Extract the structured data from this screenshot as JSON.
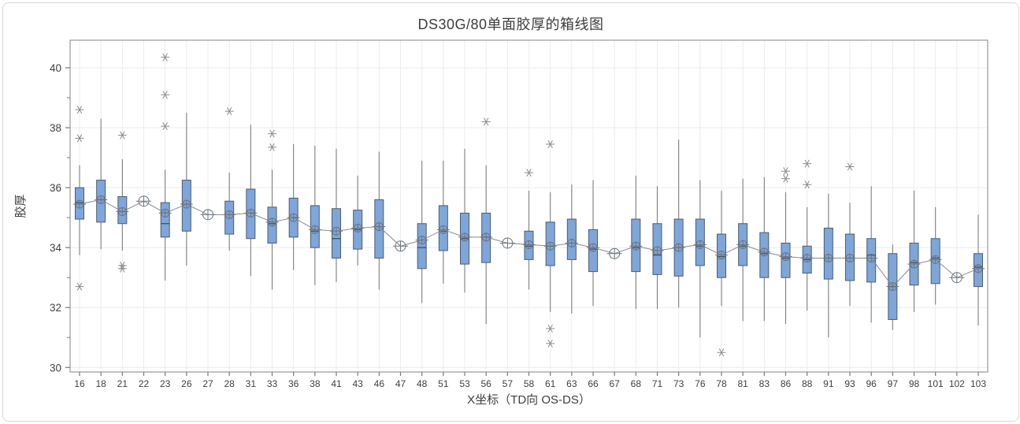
{
  "chart_data": {
    "type": "boxplot",
    "title": "DS30G/80单面胶厚的箱线图",
    "xlabel": "X坐标（TD向 OS-DS）",
    "ylabel": "胶厚",
    "y_ticks": [
      30,
      32,
      34,
      36,
      38,
      40
    ],
    "y_minor_ticks": [
      31,
      33,
      35,
      37,
      39
    ],
    "ylim": [
      29.85,
      40.92
    ],
    "grid": true,
    "legend": "none",
    "mean_line": true,
    "colors": {
      "box_fill": "#7ea6d8",
      "box_stroke": "#4a5d73",
      "median": "#3a4a5a",
      "whisker": "#7f7f7f",
      "mean_line": "#8a8a8a",
      "mean_marker": "#6a7480",
      "outlier": "#8a8a8a",
      "grid": "#ececec",
      "axis": "#9a9a9a",
      "tick": "#7a7a7a",
      "text": "#3f3f3f",
      "title_text": "#3d3d3d"
    },
    "categories": [
      "16",
      "18",
      "21",
      "22",
      "23",
      "26",
      "27",
      "28",
      "31",
      "33",
      "36",
      "38",
      "41",
      "43",
      "46",
      "47",
      "48",
      "51",
      "53",
      "56",
      "57",
      "58",
      "61",
      "63",
      "66",
      "67",
      "68",
      "71",
      "73",
      "76",
      "78",
      "81",
      "83",
      "86",
      "88",
      "91",
      "93",
      "96",
      "97",
      "98",
      "101",
      "102",
      "103"
    ],
    "boxes": [
      {
        "cat": "16",
        "lo": 33.75,
        "q1": 34.95,
        "med": 35.5,
        "q3": 36.0,
        "hi": 36.75,
        "mean": 35.45,
        "outliers": [
          38.6,
          37.65,
          32.7
        ]
      },
      {
        "cat": "18",
        "lo": 33.95,
        "q1": 34.85,
        "med": 35.6,
        "q3": 36.25,
        "hi": 38.3,
        "mean": 35.6,
        "outliers": []
      },
      {
        "cat": "21",
        "lo": 33.9,
        "q1": 34.8,
        "med": 35.2,
        "q3": 35.7,
        "hi": 36.95,
        "mean": 35.2,
        "outliers": [
          37.75,
          33.4,
          33.3
        ]
      },
      {
        "cat": "22",
        "lo": null,
        "q1": null,
        "med": null,
        "q3": null,
        "hi": null,
        "mean": 35.55,
        "outliers": []
      },
      {
        "cat": "23",
        "lo": 32.9,
        "q1": 34.35,
        "med": 34.8,
        "q3": 35.5,
        "hi": 36.6,
        "mean": 35.15,
        "outliers": [
          40.35,
          39.1,
          38.05
        ]
      },
      {
        "cat": "26",
        "lo": 33.4,
        "q1": 34.55,
        "med": 35.45,
        "q3": 36.25,
        "hi": 38.5,
        "mean": 35.45,
        "outliers": []
      },
      {
        "cat": "27",
        "lo": null,
        "q1": null,
        "med": null,
        "q3": null,
        "hi": null,
        "mean": 35.1,
        "outliers": []
      },
      {
        "cat": "28",
        "lo": 33.9,
        "q1": 34.45,
        "med": 35.1,
        "q3": 35.55,
        "hi": 36.5,
        "mean": 35.1,
        "outliers": [
          38.55
        ]
      },
      {
        "cat": "31",
        "lo": 33.05,
        "q1": 34.3,
        "med": 35.15,
        "q3": 35.95,
        "hi": 38.1,
        "mean": 35.15,
        "outliers": []
      },
      {
        "cat": "33",
        "lo": 32.6,
        "q1": 34.15,
        "med": 34.8,
        "q3": 35.35,
        "hi": 36.6,
        "mean": 34.85,
        "outliers": [
          37.8,
          37.35
        ]
      },
      {
        "cat": "36",
        "lo": 33.25,
        "q1": 34.35,
        "med": 35.0,
        "q3": 35.65,
        "hi": 37.45,
        "mean": 35.0,
        "outliers": []
      },
      {
        "cat": "38",
        "lo": 32.75,
        "q1": 34.0,
        "med": 34.55,
        "q3": 35.4,
        "hi": 37.4,
        "mean": 34.6,
        "outliers": []
      },
      {
        "cat": "41",
        "lo": 32.85,
        "q1": 33.65,
        "med": 34.3,
        "q3": 35.3,
        "hi": 37.3,
        "mean": 34.55,
        "outliers": []
      },
      {
        "cat": "43",
        "lo": 33.4,
        "q1": 33.95,
        "med": 34.6,
        "q3": 35.25,
        "hi": 36.4,
        "mean": 34.65,
        "outliers": []
      },
      {
        "cat": "46",
        "lo": 32.6,
        "q1": 33.65,
        "med": 34.7,
        "q3": 35.6,
        "hi": 37.2,
        "mean": 34.7,
        "outliers": []
      },
      {
        "cat": "47",
        "lo": null,
        "q1": null,
        "med": null,
        "q3": null,
        "hi": null,
        "mean": 34.05,
        "outliers": []
      },
      {
        "cat": "48",
        "lo": 32.15,
        "q1": 33.3,
        "med": 34.0,
        "q3": 34.8,
        "hi": 36.9,
        "mean": 34.25,
        "outliers": []
      },
      {
        "cat": "51",
        "lo": 32.8,
        "q1": 33.9,
        "med": 34.55,
        "q3": 35.4,
        "hi": 36.9,
        "mean": 34.6,
        "outliers": []
      },
      {
        "cat": "53",
        "lo": 32.5,
        "q1": 33.45,
        "med": 34.3,
        "q3": 35.15,
        "hi": 37.3,
        "mean": 34.35,
        "outliers": []
      },
      {
        "cat": "56",
        "lo": 31.45,
        "q1": 33.5,
        "med": 34.35,
        "q3": 35.15,
        "hi": 36.75,
        "mean": 34.35,
        "outliers": [
          38.2
        ]
      },
      {
        "cat": "57",
        "lo": null,
        "q1": null,
        "med": null,
        "q3": null,
        "hi": null,
        "mean": 34.15,
        "outliers": []
      },
      {
        "cat": "58",
        "lo": 32.6,
        "q1": 33.6,
        "med": 34.05,
        "q3": 34.55,
        "hi": 35.9,
        "mean": 34.1,
        "outliers": [
          36.5
        ]
      },
      {
        "cat": "61",
        "lo": 31.85,
        "q1": 33.4,
        "med": 34.05,
        "q3": 34.85,
        "hi": 35.85,
        "mean": 34.05,
        "outliers": [
          37.45,
          31.3,
          30.8
        ]
      },
      {
        "cat": "63",
        "lo": 31.8,
        "q1": 33.6,
        "med": 34.15,
        "q3": 34.95,
        "hi": 36.1,
        "mean": 34.15,
        "outliers": []
      },
      {
        "cat": "66",
        "lo": 32.05,
        "q1": 33.2,
        "med": 33.95,
        "q3": 34.6,
        "hi": 36.25,
        "mean": 34.0,
        "outliers": []
      },
      {
        "cat": "67",
        "lo": null,
        "q1": null,
        "med": null,
        "q3": null,
        "hi": null,
        "mean": 33.8,
        "outliers": []
      },
      {
        "cat": "68",
        "lo": 31.95,
        "q1": 33.2,
        "med": 34.0,
        "q3": 34.95,
        "hi": 36.4,
        "mean": 34.05,
        "outliers": []
      },
      {
        "cat": "71",
        "lo": 31.95,
        "q1": 33.1,
        "med": 33.75,
        "q3": 34.8,
        "hi": 36.05,
        "mean": 33.9,
        "outliers": []
      },
      {
        "cat": "73",
        "lo": 32.0,
        "q1": 33.05,
        "med": 34.0,
        "q3": 34.95,
        "hi": 37.6,
        "mean": 34.0,
        "outliers": []
      },
      {
        "cat": "76",
        "lo": 31.0,
        "q1": 33.4,
        "med": 34.05,
        "q3": 34.95,
        "hi": 36.25,
        "mean": 34.1,
        "outliers": []
      },
      {
        "cat": "78",
        "lo": 32.05,
        "q1": 33.0,
        "med": 33.7,
        "q3": 34.45,
        "hi": 35.9,
        "mean": 33.75,
        "outliers": [
          30.5
        ]
      },
      {
        "cat": "81",
        "lo": 31.55,
        "q1": 33.4,
        "med": 34.05,
        "q3": 34.8,
        "hi": 36.3,
        "mean": 34.1,
        "outliers": []
      },
      {
        "cat": "83",
        "lo": 31.55,
        "q1": 33.0,
        "med": 33.8,
        "q3": 34.5,
        "hi": 36.35,
        "mean": 33.85,
        "outliers": []
      },
      {
        "cat": "86",
        "lo": 31.45,
        "q1": 33.0,
        "med": 33.65,
        "q3": 34.15,
        "hi": 35.85,
        "mean": 33.7,
        "outliers": [
          36.55,
          36.3
        ]
      },
      {
        "cat": "88",
        "lo": 31.9,
        "q1": 33.15,
        "med": 33.6,
        "q3": 34.05,
        "hi": 35.35,
        "mean": 33.65,
        "outliers": [
          36.8,
          36.1
        ]
      },
      {
        "cat": "91",
        "lo": 31.0,
        "q1": 32.95,
        "med": 33.65,
        "q3": 34.65,
        "hi": 35.8,
        "mean": 33.65,
        "outliers": []
      },
      {
        "cat": "93",
        "lo": 32.05,
        "q1": 32.9,
        "med": 33.65,
        "q3": 34.45,
        "hi": 35.5,
        "mean": 33.65,
        "outliers": [
          36.7
        ]
      },
      {
        "cat": "96",
        "lo": 31.5,
        "q1": 32.85,
        "med": 33.75,
        "q3": 34.3,
        "hi": 36.05,
        "mean": 33.65,
        "outliers": []
      },
      {
        "cat": "97",
        "lo": 31.25,
        "q1": 31.6,
        "med": 32.7,
        "q3": 33.8,
        "hi": 34.1,
        "mean": 32.7,
        "outliers": []
      },
      {
        "cat": "98",
        "lo": 31.85,
        "q1": 32.75,
        "med": 33.5,
        "q3": 34.15,
        "hi": 35.9,
        "mean": 33.45,
        "outliers": []
      },
      {
        "cat": "101",
        "lo": 32.1,
        "q1": 32.8,
        "med": 33.65,
        "q3": 34.3,
        "hi": 35.35,
        "mean": 33.6,
        "outliers": []
      },
      {
        "cat": "102",
        "lo": null,
        "q1": null,
        "med": null,
        "q3": null,
        "hi": null,
        "mean": 33.0,
        "outliers": []
      },
      {
        "cat": "103",
        "lo": 31.4,
        "q1": 32.7,
        "med": 33.35,
        "q3": 33.8,
        "hi": 35.1,
        "mean": 33.3,
        "outliers": []
      }
    ]
  }
}
